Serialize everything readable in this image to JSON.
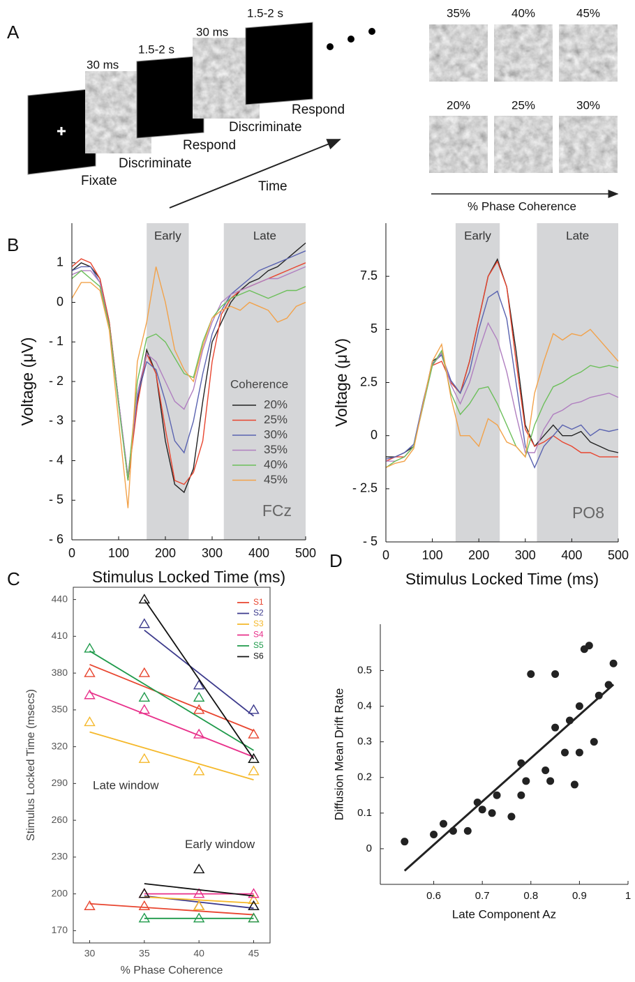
{
  "panel_labels": [
    "A",
    "B",
    "C",
    "D"
  ],
  "panel_a": {
    "timings": [
      "30 ms",
      "1.5-2 s",
      "30 ms",
      "1.5-2 s"
    ],
    "steps": [
      "Fixate",
      "Discriminate",
      "Respond",
      "Discriminate",
      "Respond"
    ],
    "time_label": "Time",
    "coherence_levels": [
      "35%",
      "40%",
      "45%",
      "20%",
      "25%",
      "30%"
    ],
    "coherence_label": "% Phase Coherence"
  },
  "chart_data": [
    {
      "type": "line",
      "ylabel": "Voltage (μV)",
      "xlabel": "Stimulus Locked Time (ms)",
      "x": [
        0,
        20,
        40,
        60,
        80,
        100,
        120,
        140,
        160,
        180,
        200,
        220,
        240,
        260,
        280,
        300,
        320,
        340,
        360,
        380,
        400,
        420,
        440,
        460,
        480,
        500
      ],
      "xlim": [
        0,
        500
      ],
      "xticks": [
        0,
        100,
        200,
        300,
        400,
        500
      ],
      "ylim": [
        -6,
        2
      ],
      "yticks": [
        {
          "value": -6,
          "label": "- 6"
        },
        {
          "value": -5,
          "label": "- 5"
        },
        {
          "value": -4,
          "label": "- 4"
        },
        {
          "value": -3,
          "label": "- 3"
        },
        {
          "value": -2,
          "label": "- 2"
        },
        {
          "value": -1,
          "label": "- 1"
        },
        0,
        1
      ],
      "shaded": [
        {
          "label": "Early",
          "range": [
            160,
            250
          ]
        },
        {
          "label": "Late",
          "range": [
            325,
            500
          ]
        }
      ],
      "electrode": "FCz",
      "legend_title": "Coherence",
      "series": [
        {
          "name": "20%",
          "color": "#222222",
          "values": [
            0.8,
            1.0,
            0.9,
            0.6,
            -0.5,
            -2.5,
            -4.5,
            -2.5,
            -1.2,
            -1.8,
            -3.5,
            -4.6,
            -4.8,
            -4.2,
            -2.5,
            -1.0,
            -0.5,
            0,
            0.3,
            0.5,
            0.6,
            0.8,
            0.9,
            1.1,
            1.3,
            1.5
          ]
        },
        {
          "name": "25%",
          "color": "#e8452f",
          "values": [
            0.9,
            1.1,
            1.0,
            0.6,
            -0.5,
            -2.5,
            -4.5,
            -2.6,
            -1.3,
            -1.8,
            -3.2,
            -4.5,
            -4.6,
            -4.3,
            -3.5,
            -1.5,
            -0.3,
            0.1,
            0.3,
            0.4,
            0.5,
            0.6,
            0.7,
            0.8,
            0.9,
            1.0
          ]
        },
        {
          "name": "30%",
          "color": "#5a63b0",
          "values": [
            0.8,
            0.9,
            0.9,
            0.5,
            -0.6,
            -2.5,
            -4.4,
            -2.4,
            -1.5,
            -1.7,
            -2.5,
            -3.5,
            -3.8,
            -3.0,
            -1.8,
            -0.8,
            -0.2,
            0.2,
            0.4,
            0.6,
            0.8,
            0.9,
            1.0,
            1.1,
            1.2,
            1.3
          ]
        },
        {
          "name": "35%",
          "color": "#b07fc0",
          "values": [
            0.7,
            0.8,
            0.8,
            0.5,
            -0.6,
            -2.5,
            -4.4,
            -2.3,
            -1.3,
            -1.5,
            -2.0,
            -2.5,
            -2.7,
            -2.2,
            -1.2,
            -0.5,
            0,
            0.2,
            0.3,
            0.4,
            0.5,
            0.6,
            0.6,
            0.7,
            0.8,
            0.9
          ]
        },
        {
          "name": "40%",
          "color": "#6cbf5a",
          "values": [
            0.6,
            0.8,
            0.6,
            0.4,
            -0.6,
            -2.6,
            -4.5,
            -2.0,
            -0.9,
            -0.8,
            -1.0,
            -1.4,
            -1.8,
            -1.9,
            -1.0,
            -0.4,
            -0.1,
            0.1,
            0.2,
            0.3,
            0.2,
            0.1,
            0.2,
            0.3,
            0.3,
            0.4
          ]
        },
        {
          "name": "45%",
          "color": "#f2a24a",
          "values": [
            0.1,
            0.5,
            0.5,
            0.3,
            -0.7,
            -3,
            -5.2,
            -1.5,
            -0.5,
            0.9,
            0,
            -1.2,
            -1.7,
            -2,
            -1.1,
            -0.4,
            -0.2,
            -0.1,
            -0.2,
            0,
            -0.1,
            -0.2,
            -0.5,
            -0.4,
            -0.1,
            0
          ]
        }
      ]
    },
    {
      "type": "line",
      "ylabel": "Voltage (μV)",
      "xlabel": "Stimulus Locked Time (ms)",
      "x": [
        0,
        20,
        40,
        60,
        80,
        100,
        120,
        140,
        160,
        180,
        200,
        220,
        240,
        260,
        280,
        300,
        320,
        340,
        360,
        380,
        400,
        420,
        440,
        460,
        480,
        500
      ],
      "xlim": [
        0,
        500
      ],
      "xticks": [
        0,
        100,
        200,
        300,
        400,
        500
      ],
      "ylim": [
        -5,
        10
      ],
      "yticks": [
        {
          "value": -5,
          "label": "- 5"
        },
        {
          "value": -2.5,
          "label": "- 2.5"
        },
        0,
        2.5,
        5,
        7.5
      ],
      "shaded": [
        {
          "label": "Early",
          "range": [
            150,
            245
          ]
        },
        {
          "label": "Late",
          "range": [
            325,
            500
          ]
        }
      ],
      "electrode": "PO8",
      "series": [
        {
          "color": "#222222",
          "values": [
            -1,
            -1,
            -0.8,
            -0.5,
            1.5,
            3.5,
            3.8,
            2.5,
            2,
            3.5,
            5.5,
            7.5,
            8.3,
            7,
            4,
            0.5,
            -0.5,
            0,
            0.5,
            0,
            0,
            0.2,
            -0.3,
            -0.5,
            -0.7,
            -0.8
          ]
        },
        {
          "color": "#e8452f",
          "values": [
            -1.2,
            -1,
            -1,
            -0.5,
            1.5,
            3.3,
            3.5,
            2.5,
            2,
            3.5,
            5.5,
            7.5,
            8.2,
            7,
            3.5,
            0.3,
            -0.5,
            -0.3,
            0,
            -0.3,
            -0.5,
            -0.8,
            -0.8,
            -1,
            -1,
            -1
          ]
        },
        {
          "color": "#5a63b0",
          "values": [
            -1.1,
            -1,
            -0.8,
            -0.4,
            1.6,
            3.4,
            3.8,
            2.6,
            2,
            3,
            5,
            6.5,
            6.8,
            5.5,
            2.5,
            -0.5,
            -1.5,
            -0.5,
            0,
            0.5,
            0.3,
            0.5,
            0,
            0.3,
            0.2,
            0.3
          ]
        },
        {
          "color": "#b07fc0",
          "values": [
            -1.2,
            -1.2,
            -1,
            -0.5,
            1.4,
            3.3,
            3.9,
            2.4,
            1.5,
            2.5,
            4,
            5.3,
            4.5,
            3,
            1,
            -0.8,
            -0.8,
            0.3,
            1,
            1.2,
            1.5,
            1.6,
            1.8,
            1.9,
            2,
            1.8
          ]
        },
        {
          "color": "#6cbf5a",
          "values": [
            -1.5,
            -1.2,
            -1,
            -0.5,
            1.4,
            3.3,
            4,
            2,
            1,
            1.5,
            2.2,
            2.3,
            1.5,
            0.5,
            -0.5,
            -1,
            0.5,
            1.5,
            2.3,
            2.5,
            2.8,
            3,
            3.3,
            3.2,
            3.3,
            3.2
          ]
        },
        {
          "color": "#f2a24a",
          "values": [
            -1.5,
            -1.3,
            -1.2,
            -0.6,
            1.5,
            3.5,
            4.3,
            1.8,
            0,
            0,
            -0.5,
            0.8,
            0.5,
            -0.3,
            -0.5,
            -1,
            2,
            3.5,
            4.8,
            4.5,
            4.8,
            4.7,
            5,
            4.5,
            4,
            3.5
          ]
        }
      ]
    },
    {
      "type": "window-scatter",
      "ylabel": "Stimulus Locked Time (msecs)",
      "xlabel": "% Phase Coherence",
      "xlim": [
        28.5,
        46.5
      ],
      "xticks": [
        30,
        35,
        40,
        45
      ],
      "ylim": [
        160,
        450
      ],
      "yticks": [
        170,
        200,
        230,
        260,
        290,
        320,
        350,
        380,
        410,
        440
      ],
      "late_label": "Late window",
      "early_label": "Early window",
      "fit": true,
      "series": [
        {
          "name": "S1",
          "color": "#e8452f",
          "x": [
            30,
            35,
            40,
            45
          ],
          "late": [
            380,
            380,
            350,
            330
          ],
          "early": [
            190,
            190,
            190,
            180
          ]
        },
        {
          "name": "S2",
          "color": "#3c3a8c",
          "x": [
            30,
            35,
            40,
            45
          ],
          "late": [
            null,
            420,
            370,
            350
          ],
          "early": [
            null,
            200,
            190,
            190
          ]
        },
        {
          "name": "S3",
          "color": "#f5b82a",
          "x": [
            30,
            35,
            40,
            45
          ],
          "late": [
            340,
            310,
            300,
            300
          ],
          "early": [
            null,
            200,
            190,
            195
          ]
        },
        {
          "name": "S4",
          "color": "#e8308a",
          "x": [
            30,
            35,
            40,
            45
          ],
          "late": [
            362,
            350,
            330,
            310
          ],
          "early": [
            null,
            200,
            200,
            200
          ]
        },
        {
          "name": "S5",
          "color": "#1e9a4a",
          "x": [
            30,
            35,
            40,
            45
          ],
          "late": [
            400,
            360,
            360,
            310
          ],
          "early": [
            null,
            180,
            180,
            180
          ]
        },
        {
          "name": "S6",
          "color": "#111111",
          "x": [
            30,
            35,
            40,
            45
          ],
          "late": [
            null,
            440,
            null,
            310
          ],
          "early": [
            null,
            200,
            220,
            190
          ]
        }
      ]
    },
    {
      "type": "scatter",
      "ylabel": "Diffusion Mean Drift Rate",
      "xlabel": "Late Component Az",
      "xlim": [
        0.49,
        1.0
      ],
      "xticks": [
        0.6,
        0.7,
        0.8,
        0.9,
        1
      ],
      "ylim": [
        -0.1,
        0.63
      ],
      "yticks": [
        0,
        0.1,
        0.2,
        0.3,
        0.4,
        0.5
      ],
      "fit": true,
      "color": "#222222",
      "x": [
        0.54,
        0.6,
        0.62,
        0.64,
        0.67,
        0.69,
        0.7,
        0.72,
        0.73,
        0.76,
        0.78,
        0.78,
        0.79,
        0.8,
        0.83,
        0.84,
        0.85,
        0.85,
        0.87,
        0.88,
        0.89,
        0.9,
        0.9,
        0.91,
        0.92,
        0.93,
        0.94,
        0.96,
        0.97
      ],
      "values": [
        0.02,
        0.04,
        0.07,
        0.05,
        0.05,
        0.13,
        0.11,
        0.1,
        0.15,
        0.09,
        0.24,
        0.15,
        0.19,
        0.49,
        0.22,
        0.19,
        0.34,
        0.49,
        0.27,
        0.36,
        0.18,
        0.27,
        0.4,
        0.56,
        0.57,
        0.3,
        0.43,
        0.46,
        0.52
      ]
    }
  ]
}
